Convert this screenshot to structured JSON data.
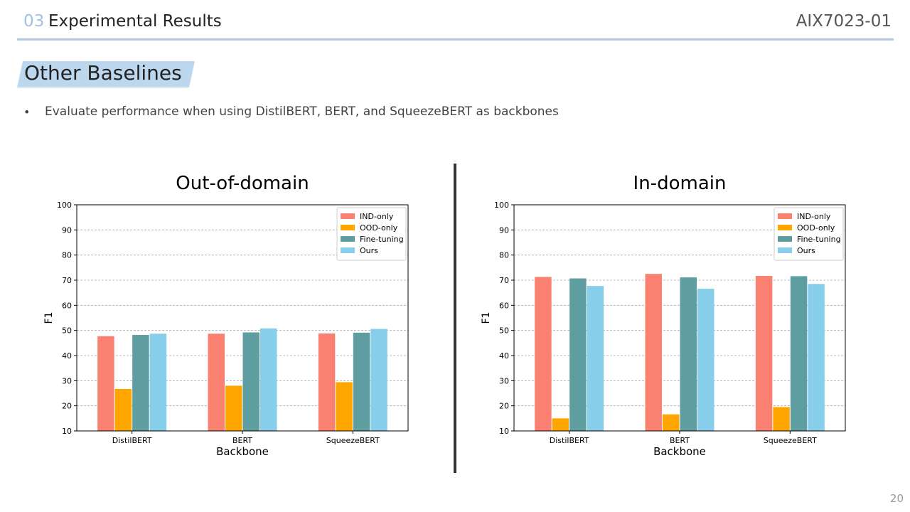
{
  "header": {
    "section_number": "03",
    "section_title": "Experimental Results",
    "course_code": "AIX7023-01"
  },
  "slide": {
    "title": "Other Baselines",
    "bullet": "Evaluate performance when using DistilBERT, BERT, and SqueezeBERT as backbones",
    "page_number": "20"
  },
  "chart_data": [
    {
      "type": "bar",
      "title": "Out-of-domain",
      "xlabel": "Backbone",
      "ylabel": "F1",
      "ylim": [
        10,
        100
      ],
      "yticks": [
        10,
        20,
        30,
        40,
        50,
        60,
        70,
        80,
        90,
        100
      ],
      "grid": true,
      "legend_position": "top-right",
      "categories": [
        "DistilBERT",
        "BERT",
        "SqueezeBERT"
      ],
      "series": [
        {
          "name": "IND-only",
          "color": "#fa8072",
          "values": [
            47.7,
            48.7,
            48.8
          ]
        },
        {
          "name": "OOD-only",
          "color": "#ffa500",
          "values": [
            26.7,
            28.0,
            29.4
          ]
        },
        {
          "name": "Fine-tuning",
          "color": "#5f9ea0",
          "values": [
            48.2,
            49.2,
            49.1
          ]
        },
        {
          "name": "Ours",
          "color": "#87ceeb",
          "values": [
            48.7,
            50.8,
            50.6
          ]
        }
      ]
    },
    {
      "type": "bar",
      "title": "In-domain",
      "xlabel": "Backbone",
      "ylabel": "F1",
      "ylim": [
        10,
        100
      ],
      "yticks": [
        10,
        20,
        30,
        40,
        50,
        60,
        70,
        80,
        90,
        100
      ],
      "grid": true,
      "legend_position": "top-right",
      "categories": [
        "DistilBERT",
        "BERT",
        "SqueezeBERT"
      ],
      "series": [
        {
          "name": "IND-only",
          "color": "#fa8072",
          "values": [
            71.3,
            72.5,
            71.7
          ]
        },
        {
          "name": "OOD-only",
          "color": "#ffa500",
          "values": [
            15.0,
            16.6,
            19.5
          ]
        },
        {
          "name": "Fine-tuning",
          "color": "#5f9ea0",
          "values": [
            70.7,
            71.1,
            71.6
          ]
        },
        {
          "name": "Ours",
          "color": "#87ceeb",
          "values": [
            67.7,
            66.6,
            68.5
          ]
        }
      ]
    }
  ]
}
